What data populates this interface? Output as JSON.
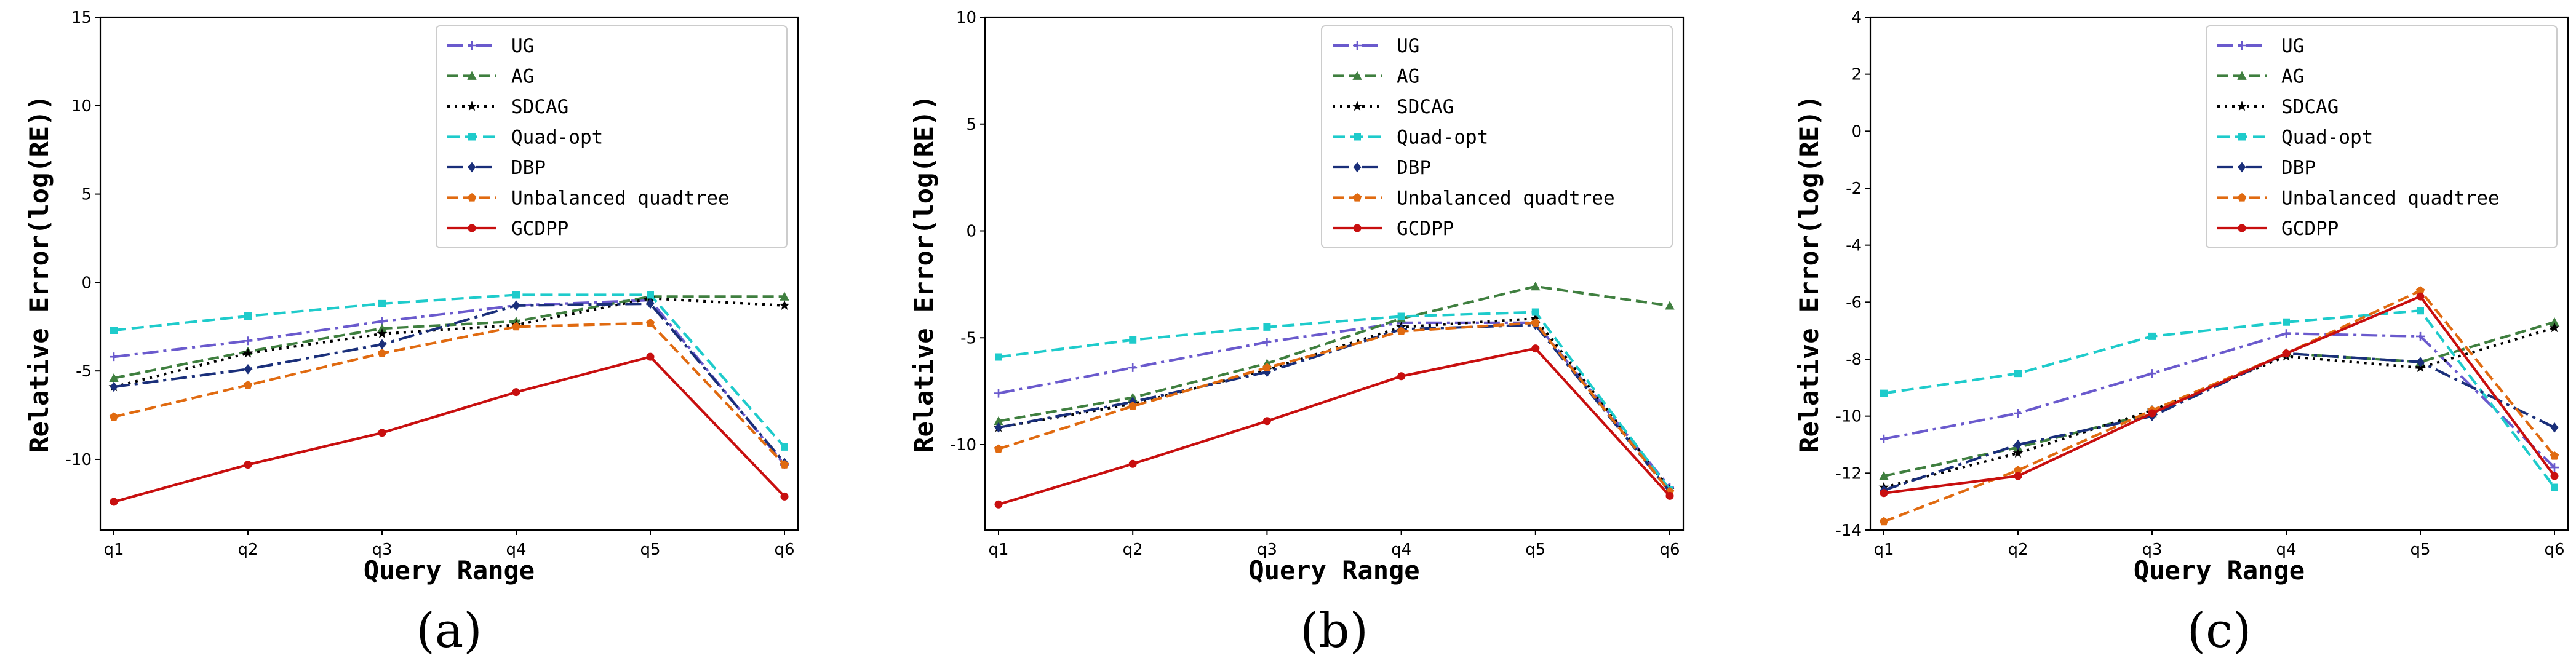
{
  "series_style": [
    {
      "name": "UG",
      "color": "#6a5acd",
      "dash": "26,8,5,8",
      "marker": "plus"
    },
    {
      "name": "AG",
      "color": "#3f7f3f",
      "dash": "18,8",
      "marker": "triangle"
    },
    {
      "name": "SDCAG",
      "color": "#000000",
      "dash": "4,8",
      "marker": "star"
    },
    {
      "name": "Quad-opt",
      "color": "#1ecbcb",
      "dash": "20,9",
      "marker": "square"
    },
    {
      "name": "DBP",
      "color": "#1a2f7a",
      "dash": "26,8,5,8",
      "marker": "diamond"
    },
    {
      "name": "Unbalanced quadtree",
      "color": "#e06a10",
      "dash": "18,8",
      "marker": "pentagon"
    },
    {
      "name": "GCDPP",
      "color": "#c80f0f",
      "dash": "",
      "marker": "circle"
    }
  ],
  "chart_data": [
    {
      "type": "line",
      "panel_label": "(a)",
      "xlabel": "Query Range",
      "ylabel": "Relative Error(log(RE))",
      "categories": [
        "q1",
        "q2",
        "q3",
        "q4",
        "q5",
        "q6"
      ],
      "ylim": [
        -14,
        15
      ],
      "yticks": [
        -10,
        -5,
        0,
        5,
        10,
        15
      ],
      "legend_position": "upper-right",
      "series": [
        {
          "name": "UG",
          "values": [
            -4.2,
            -3.3,
            -2.2,
            -1.3,
            -1.0,
            -10.3
          ]
        },
        {
          "name": "AG",
          "values": [
            -5.4,
            -3.9,
            -2.6,
            -2.2,
            -0.8,
            -0.8
          ]
        },
        {
          "name": "SDCAG",
          "values": [
            -5.9,
            -4.0,
            -2.9,
            -2.4,
            -0.9,
            -1.3
          ]
        },
        {
          "name": "Quad-opt",
          "values": [
            -2.7,
            -1.9,
            -1.2,
            -0.7,
            -0.7,
            -9.3
          ]
        },
        {
          "name": "DBP",
          "values": [
            -5.9,
            -4.9,
            -3.5,
            -1.3,
            -1.2,
            -10.2
          ]
        },
        {
          "name": "Unbalanced quadtree",
          "values": [
            -7.6,
            -5.8,
            -4.0,
            -2.5,
            -2.3,
            -10.3
          ]
        },
        {
          "name": "GCDPP",
          "values": [
            -12.4,
            -10.3,
            -8.5,
            -6.2,
            -4.2,
            -12.1
          ]
        }
      ]
    },
    {
      "type": "line",
      "panel_label": "(b)",
      "xlabel": "Query Range",
      "ylabel": "Relative Error(log(RE))",
      "categories": [
        "q1",
        "q2",
        "q3",
        "q4",
        "q5",
        "q6"
      ],
      "ylim": [
        -14,
        10
      ],
      "yticks": [
        -10,
        -5,
        0,
        5,
        10
      ],
      "legend_position": "upper-right",
      "series": [
        {
          "name": "UG",
          "values": [
            -7.6,
            -6.4,
            -5.2,
            -4.3,
            -4.3,
            -12.0
          ]
        },
        {
          "name": "AG",
          "values": [
            -8.9,
            -7.8,
            -6.2,
            -4.1,
            -2.6,
            -3.5
          ]
        },
        {
          "name": "SDCAG",
          "values": [
            -9.2,
            -8.1,
            -6.5,
            -4.5,
            -4.1,
            -12.1
          ]
        },
        {
          "name": "Quad-opt",
          "values": [
            -5.9,
            -5.1,
            -4.5,
            -4.0,
            -3.8,
            -12.1
          ]
        },
        {
          "name": "DBP",
          "values": [
            -9.2,
            -8.0,
            -6.6,
            -4.6,
            -4.4,
            -12.2
          ]
        },
        {
          "name": "Unbalanced quadtree",
          "values": [
            -10.2,
            -8.2,
            -6.4,
            -4.7,
            -4.3,
            -12.2
          ]
        },
        {
          "name": "GCDPP",
          "values": [
            -12.8,
            -10.9,
            -8.9,
            -6.8,
            -5.5,
            -12.4
          ]
        }
      ]
    },
    {
      "type": "line",
      "panel_label": "(c)",
      "xlabel": "Query Range",
      "ylabel": "Relative Error(log(RE))",
      "categories": [
        "q1",
        "q2",
        "q3",
        "q4",
        "q5",
        "q6"
      ],
      "ylim": [
        -14,
        4
      ],
      "yticks": [
        -14,
        -12,
        -10,
        -8,
        -6,
        -4,
        -2,
        0,
        2,
        4
      ],
      "legend_position": "upper-right",
      "series": [
        {
          "name": "UG",
          "values": [
            -10.8,
            -9.9,
            -8.5,
            -7.1,
            -7.2,
            -11.8
          ]
        },
        {
          "name": "AG",
          "values": [
            -12.1,
            -11.1,
            -9.9,
            -7.8,
            -8.1,
            -6.7
          ]
        },
        {
          "name": "SDCAG",
          "values": [
            -12.5,
            -11.3,
            -9.8,
            -7.9,
            -8.3,
            -6.9
          ]
        },
        {
          "name": "Quad-opt",
          "values": [
            -9.2,
            -8.5,
            -7.2,
            -6.7,
            -6.3,
            -12.5
          ]
        },
        {
          "name": "DBP",
          "values": [
            -12.6,
            -11.0,
            -10.0,
            -7.8,
            -8.1,
            -10.4
          ]
        },
        {
          "name": "Unbalanced quadtree",
          "values": [
            -13.7,
            -11.9,
            -9.8,
            -7.8,
            -5.6,
            -11.4
          ]
        },
        {
          "name": "GCDPP",
          "values": [
            -12.7,
            -12.1,
            -9.9,
            -7.8,
            -5.8,
            -12.1
          ]
        }
      ]
    }
  ]
}
